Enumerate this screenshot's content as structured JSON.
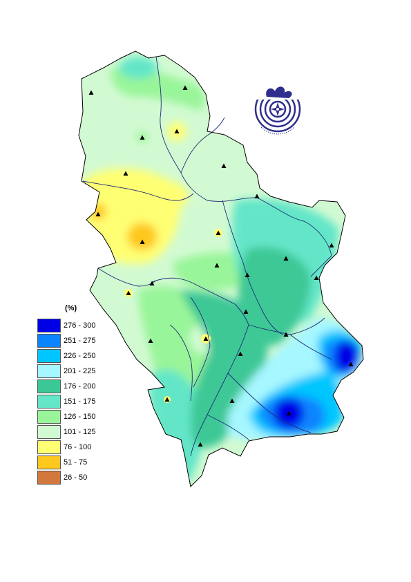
{
  "legend": {
    "unit": "(%)",
    "classes": [
      {
        "label": "276 - 300",
        "color": "#0000e6"
      },
      {
        "label": "251 - 275",
        "color": "#0a84ff"
      },
      {
        "label": "226 - 250",
        "color": "#00c6ff"
      },
      {
        "label": "201 - 225",
        "color": "#a6f7ff"
      },
      {
        "label": "176 - 200",
        "color": "#3cc896"
      },
      {
        "label": "151 - 175",
        "color": "#64e6c8"
      },
      {
        "label": "126 - 150",
        "color": "#99f599"
      },
      {
        "label": "101 - 125",
        "color": "#d2fad2"
      },
      {
        "label": "76 - 100",
        "color": "#ffff73"
      },
      {
        "label": "51 - 75",
        "color": "#ffc81e"
      },
      {
        "label": "26 - 50",
        "color": "#d2783c"
      }
    ]
  },
  "colors": {
    "border": "#000000",
    "rivers": "#1e2a78",
    "stations": "#000000",
    "logo": "#2e2e8c"
  },
  "stations_count": 27,
  "logo_icon": "hydrometeorological-service-emblem"
}
